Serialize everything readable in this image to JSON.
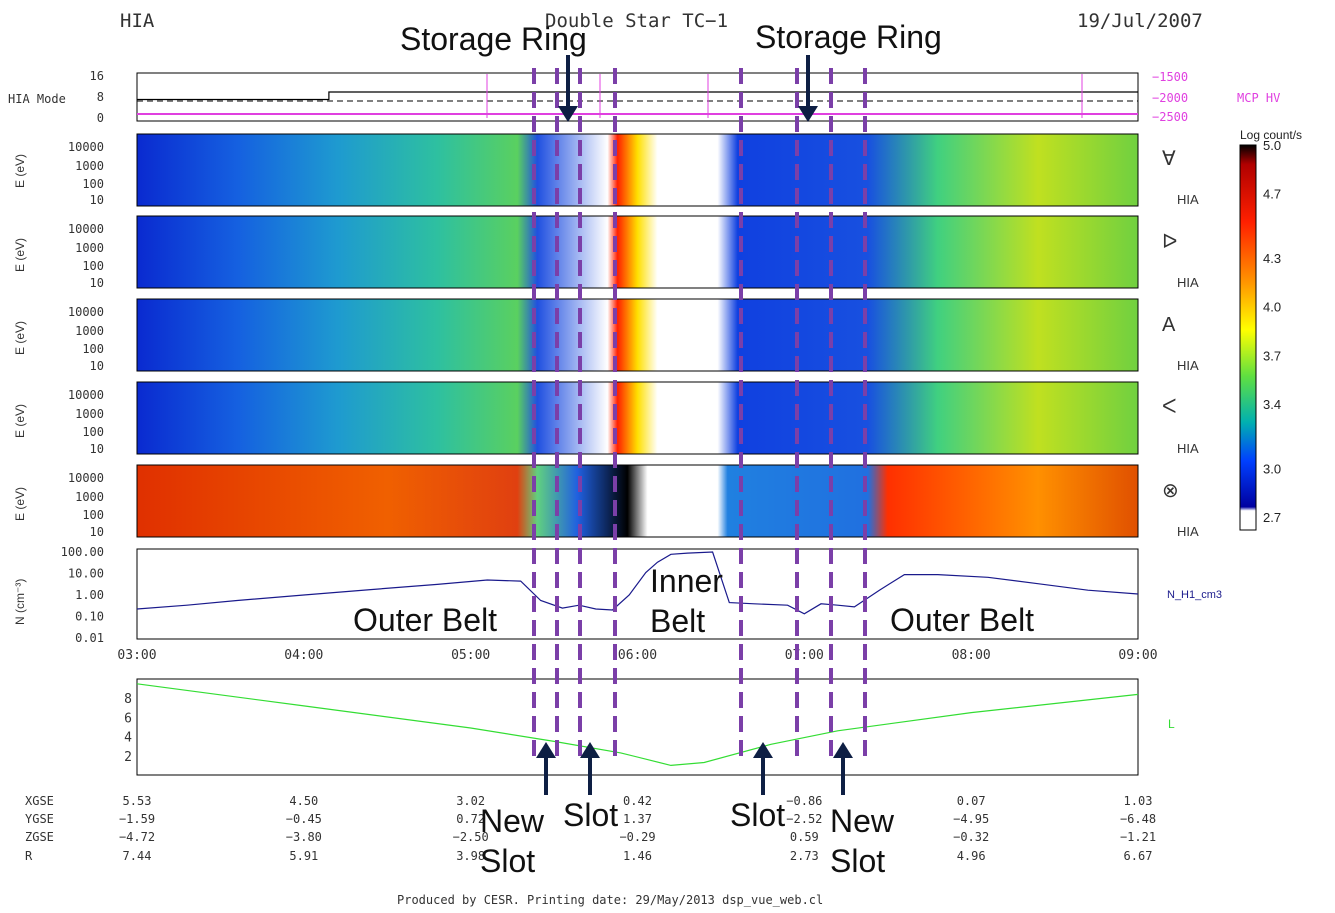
{
  "header": {
    "left": "HIA",
    "center": "Double Star TC−1",
    "right": "19/Jul/2007"
  },
  "footer": "Produced by CESR.   Printing date: 29/May/2013   dsp_vue_web.cl",
  "annotations": {
    "storage_ring_1": "Storage Ring",
    "storage_ring_2": "Storage Ring",
    "outer_belt_1": "Outer Belt",
    "outer_belt_2": "Outer Belt",
    "inner_belt_1": "Inner",
    "inner_belt_2": "Belt",
    "new_slot_1a": "New",
    "new_slot_1b": "Slot",
    "slot_1": "Slot",
    "slot_2": "Slot",
    "new_slot_2a": "New",
    "new_slot_2b": "Slot"
  },
  "colors": {
    "mode_line": "#000000",
    "mcp_hv": "#e040e0",
    "density": "#1a1a8c",
    "orbit": "#33dd33",
    "dashed_markers": "#7b3fa8",
    "arrows": "#0e1f44"
  },
  "chart_data": [
    {
      "type": "line",
      "panel": "hia_mode",
      "ylabel": "HIA Mode",
      "yticks": [
        "16",
        "8",
        "0"
      ],
      "right_axis": {
        "label": "MCP HV",
        "ticks": [
          "−1500",
          "−2000",
          "−2500"
        ]
      },
      "x": [
        3.0,
        4.15,
        4.15,
        9.0
      ],
      "series": [
        {
          "values": [
            7,
            7,
            10,
            10
          ]
        }
      ]
    },
    {
      "type": "heatmap",
      "panel": "spectrogram",
      "ylabel": "E (eV)",
      "yticks": [
        "10000",
        "1000",
        "100",
        "10"
      ],
      "instrument_label": "HIA",
      "sector_symbols": [
        "∀",
        "ᐅ",
        "A",
        "ᐸ",
        "⊗"
      ],
      "colorbar": {
        "title": "Log count/s",
        "ticks": [
          "5.0",
          "4.7",
          "4.3",
          "4.0",
          "3.7",
          "3.4",
          "3.0",
          "2.7"
        ],
        "range": [
          2.7,
          5.0
        ]
      }
    },
    {
      "type": "line",
      "panel": "density",
      "ylabel": "N (cm⁻³)",
      "yticks": [
        "100.00",
        "10.00",
        "1.00",
        "0.10",
        "0.01"
      ],
      "ylim": [
        0.01,
        100
      ],
      "yscale": "log",
      "series": [
        {
          "name": "N_H1_cm3",
          "x": [
            3.0,
            3.3,
            3.6,
            4.0,
            4.4,
            4.8,
            5.1,
            5.3,
            5.42,
            5.55,
            5.65,
            5.75,
            5.85,
            5.95,
            6.05,
            6.12,
            6.2,
            6.3,
            6.45,
            6.55,
            6.7,
            6.9,
            7.0,
            7.1,
            7.2,
            7.3,
            7.45,
            7.6,
            7.8,
            8.1,
            8.4,
            8.7,
            9.0
          ],
          "values": [
            0.2,
            0.3,
            0.5,
            0.9,
            1.6,
            2.8,
            4.5,
            4.0,
            0.5,
            0.22,
            0.3,
            0.2,
            0.18,
            0.9,
            10,
            30,
            70,
            80,
            90,
            0.4,
            0.35,
            0.3,
            0.12,
            0.35,
            0.3,
            0.25,
            1.5,
            8,
            8,
            6,
            3,
            1.5,
            1.0
          ]
        }
      ],
      "xticks": [
        "03:00",
        "04:00",
        "05:00",
        "06:00",
        "07:00",
        "08:00",
        "09:00"
      ]
    },
    {
      "type": "line",
      "panel": "orbit_r",
      "yticks": [
        "8",
        "6",
        "4",
        "2"
      ],
      "ylim": [
        0,
        10
      ],
      "series": [
        {
          "name": "L",
          "x": [
            3.0,
            4.0,
            5.0,
            5.5,
            5.9,
            6.2,
            6.4,
            6.8,
            7.2,
            8.0,
            9.0
          ],
          "values": [
            9.5,
            7.2,
            4.9,
            3.5,
            2.3,
            1.0,
            1.3,
            3.2,
            4.6,
            6.5,
            8.4
          ]
        }
      ]
    }
  ],
  "ephemeris": {
    "labels": [
      "XGSE",
      "YGSE",
      "ZGSE",
      "R"
    ],
    "columns": [
      [
        "5.53",
        "−1.59",
        "−4.72",
        "7.44"
      ],
      [
        "4.50",
        "−0.45",
        "−3.80",
        "5.91"
      ],
      [
        "3.02",
        "0.72",
        "−2.50",
        "3.98"
      ],
      [
        "0.42",
        "1.37",
        "−0.29",
        "1.46"
      ],
      [
        "−0.86",
        "−2.52",
        "0.59",
        "2.73"
      ],
      [
        "0.07",
        "−4.95",
        "−0.32",
        "4.96"
      ],
      [
        "1.03",
        "−6.48",
        "−1.21",
        "6.67"
      ]
    ]
  }
}
